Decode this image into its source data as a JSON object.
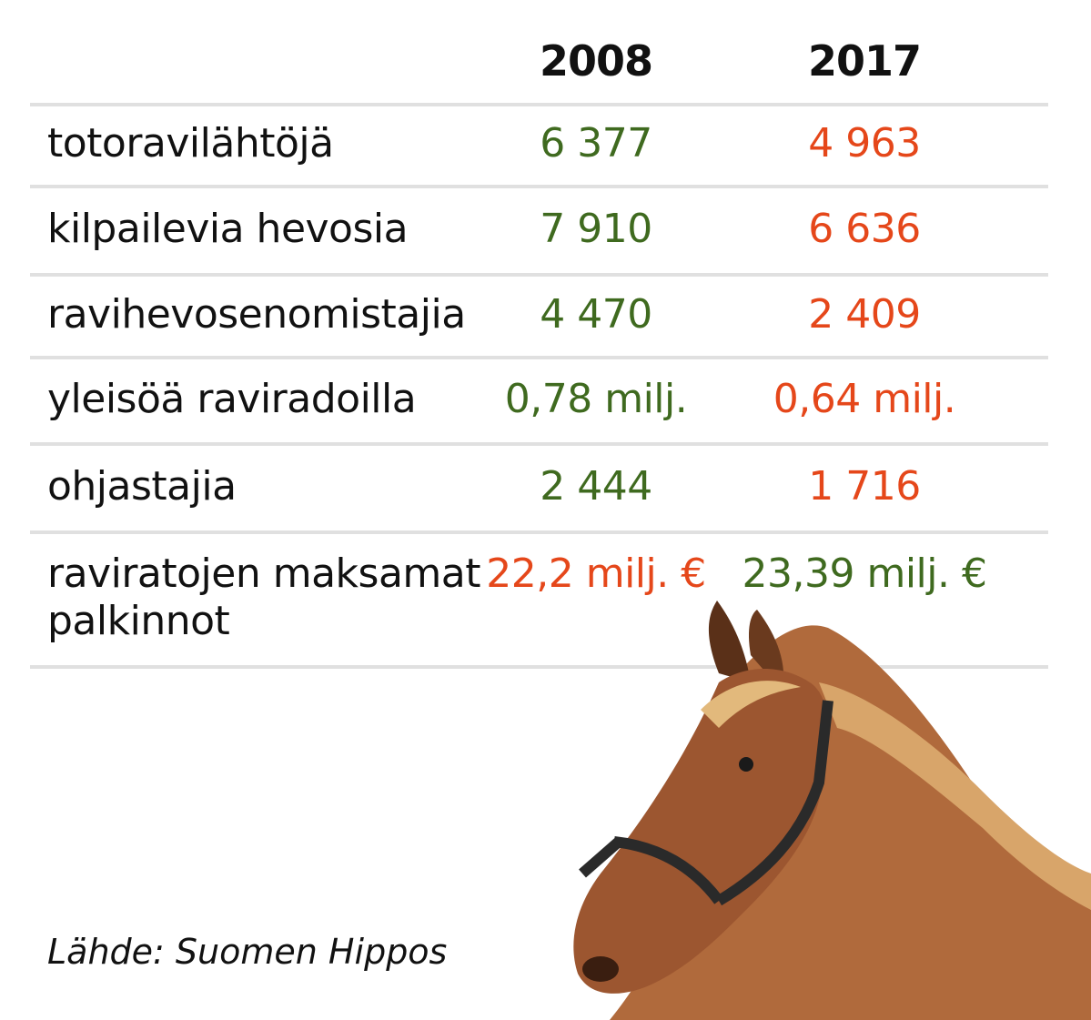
{
  "header": {
    "columns": [
      "2008",
      "2017"
    ]
  },
  "table": {
    "rows": [
      {
        "label": "totoravilähtöjä",
        "cells": [
          {
            "text": "6 377",
            "color": "#3f6a1f"
          },
          {
            "text": "4 963",
            "color": "#e5471a"
          }
        ]
      },
      {
        "label": "kilpailevia hevosia",
        "cells": [
          {
            "text": "7 910",
            "color": "#3f6a1f"
          },
          {
            "text": "6 636",
            "color": "#e5471a"
          }
        ]
      },
      {
        "label": "ravihevosenomistajia",
        "cells": [
          {
            "text": "4 470",
            "color": "#3f6a1f"
          },
          {
            "text": "2 409",
            "color": "#e5471a"
          }
        ]
      },
      {
        "label": "yleisöä raviradoilla",
        "cells": [
          {
            "text": "0,78 milj.",
            "color": "#3f6a1f"
          },
          {
            "text": "0,64 milj.",
            "color": "#e5471a"
          }
        ]
      },
      {
        "label": "ohjastajia",
        "cells": [
          {
            "text": "2 444",
            "color": "#3f6a1f"
          },
          {
            "text": "1 716",
            "color": "#e5471a"
          }
        ]
      },
      {
        "label": "raviratojen maksamat palkinnot",
        "cells": [
          {
            "text": "22,2 milj. €",
            "color": "#e5471a"
          },
          {
            "text": "23,39 milj. €",
            "color": "#3f6a1f"
          }
        ]
      }
    ]
  },
  "source": "Lähde: Suomen Hippos"
}
